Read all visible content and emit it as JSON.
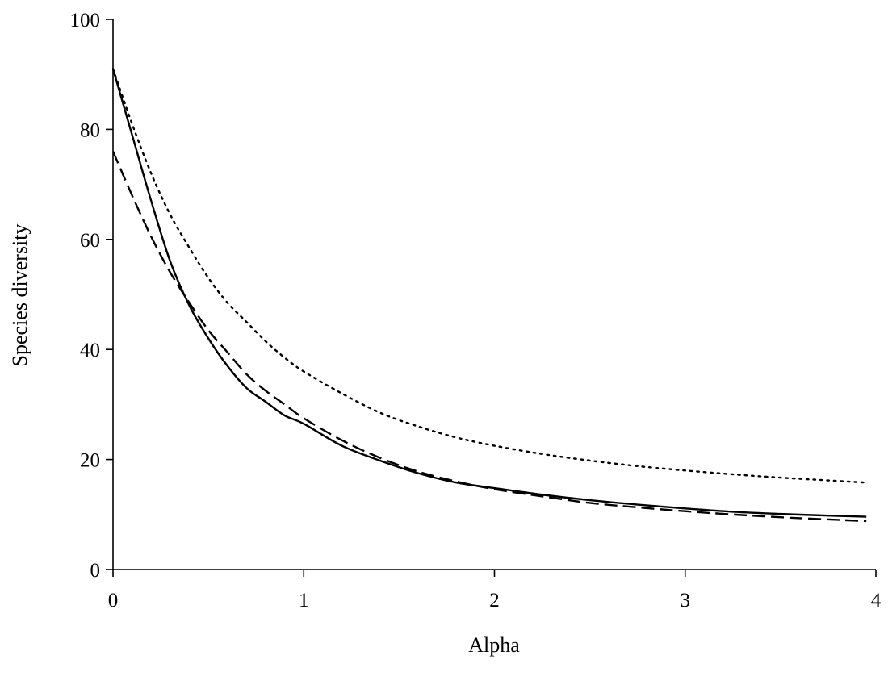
{
  "chart_data": {
    "type": "line",
    "title": "",
    "xlabel": "Alpha",
    "ylabel": "Species diversity",
    "xlim": [
      0,
      4
    ],
    "ylim": [
      0,
      100
    ],
    "xticks": [
      0,
      1,
      2,
      3,
      4
    ],
    "yticks": [
      0,
      20,
      40,
      60,
      80,
      100
    ],
    "grid": false,
    "legend": "none",
    "series": [
      {
        "style": "solid",
        "color": "#000000",
        "x": [
          0,
          0.1,
          0.2,
          0.3,
          0.4,
          0.5,
          0.6,
          0.7,
          0.8,
          0.9,
          1.0,
          1.2,
          1.4,
          1.6,
          1.8,
          2.0,
          2.25,
          2.5,
          2.75,
          3.0,
          3.25,
          3.5,
          3.75,
          3.95
        ],
        "y": [
          91,
          79,
          67,
          56,
          48,
          42,
          37,
          33,
          30.5,
          28,
          26.5,
          22.5,
          19.8,
          17.5,
          15.8,
          14.8,
          13.6,
          12.6,
          11.8,
          11.1,
          10.5,
          10.1,
          9.8,
          9.6
        ]
      },
      {
        "style": "dashed",
        "color": "#000000",
        "x": [
          0,
          0.1,
          0.2,
          0.3,
          0.4,
          0.5,
          0.6,
          0.7,
          0.8,
          0.9,
          1.0,
          1.2,
          1.4,
          1.6,
          1.8,
          2.0,
          2.25,
          2.5,
          2.75,
          3.0,
          3.25,
          3.5,
          3.75,
          3.95
        ],
        "y": [
          76,
          68,
          60.5,
          54,
          48.5,
          43.5,
          39.5,
          35.5,
          32.5,
          30,
          27.5,
          23.5,
          20.3,
          17.8,
          16,
          14.6,
          13.3,
          12.1,
          11.3,
          10.6,
          10,
          9.5,
          9.1,
          8.8
        ]
      },
      {
        "style": "dotted",
        "color": "#000000",
        "x": [
          0,
          0.1,
          0.2,
          0.3,
          0.4,
          0.5,
          0.6,
          0.7,
          0.8,
          0.9,
          1.0,
          1.2,
          1.4,
          1.6,
          1.8,
          2.0,
          2.25,
          2.5,
          2.75,
          3.0,
          3.25,
          3.5,
          3.75,
          3.95
        ],
        "y": [
          91,
          81,
          72,
          64.5,
          58.5,
          53,
          48.5,
          45,
          41.5,
          38.5,
          36,
          32,
          28.5,
          26,
          24,
          22.5,
          21,
          19.8,
          18.8,
          18,
          17.3,
          16.7,
          16.2,
          15.8
        ]
      }
    ]
  }
}
